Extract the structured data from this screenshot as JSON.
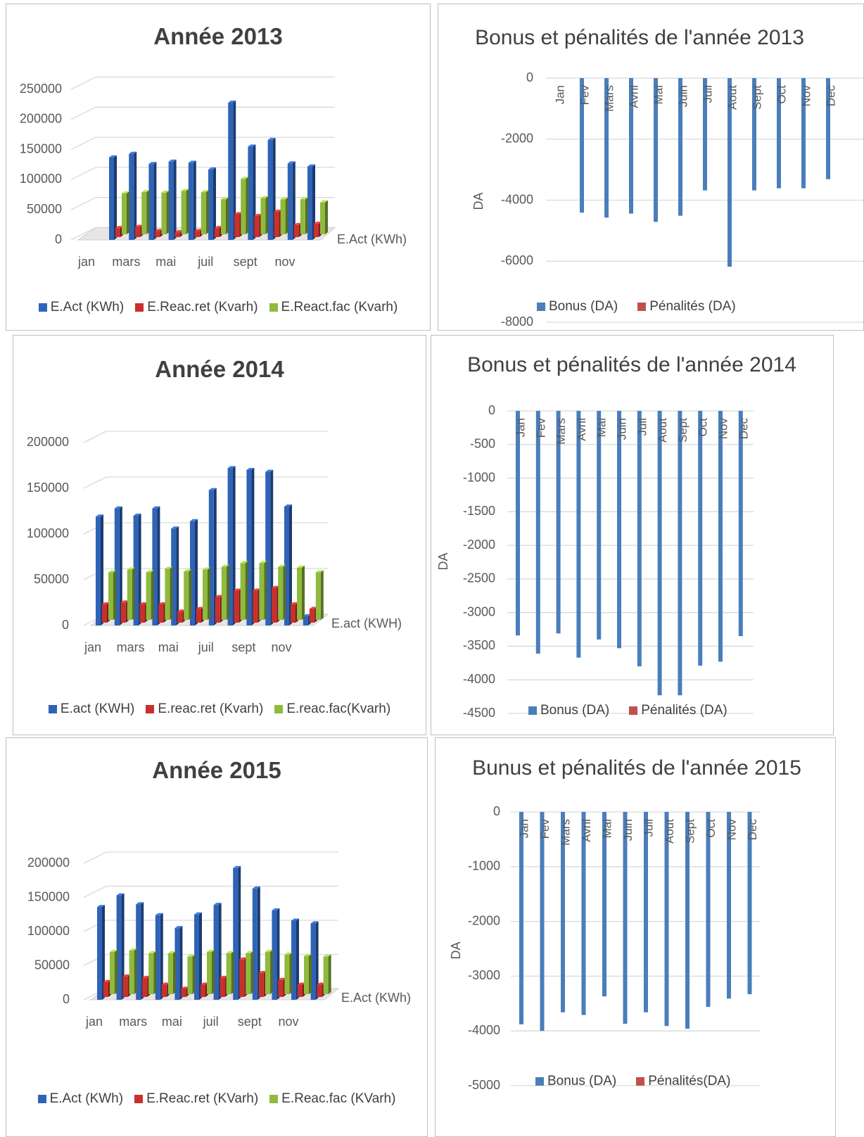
{
  "chart_data": [
    {
      "type": "bar3d",
      "title": "Année 2013",
      "categories": [
        "jan",
        null,
        "mars",
        null,
        "mai",
        null,
        "juil",
        null,
        "sept",
        null,
        "nov",
        null
      ],
      "series": [
        {
          "name": "E.Act (KWh)",
          "color": "#2f63b8",
          "values": [
            137000,
            143000,
            126000,
            130000,
            128000,
            117000,
            228000,
            155000,
            166000,
            127000,
            122000,
            null
          ]
        },
        {
          "name": "E.Reac.ret (Kvarh)",
          "color": "#c9302c",
          "values": [
            15000,
            17000,
            10000,
            8000,
            10000,
            15000,
            38000,
            35000,
            42000,
            20000,
            22000,
            null
          ]
        },
        {
          "name": "E.React.fac (Kvarh)",
          "color": "#8fba3e",
          "values": [
            68000,
            70000,
            69000,
            72000,
            70000,
            58000,
            92000,
            60000,
            58000,
            58000,
            53000,
            null
          ]
        }
      ],
      "depth_label": "E.Act (KWh)",
      "ylim": [
        0,
        250000
      ],
      "yticks": [
        0,
        50000,
        100000,
        150000,
        200000,
        250000
      ],
      "grid": true,
      "legend": "bottom"
    },
    {
      "type": "bar",
      "title": "Bonus et pénalités de l'année 2013",
      "y_label": "DA",
      "categories": [
        "Jan",
        "Fev",
        "Mars",
        "Avril",
        "Mai",
        "Juin",
        "Juil",
        "Aout",
        "Sept",
        "Oct",
        "Nov",
        "Dec"
      ],
      "series": [
        {
          "name": "Bonus (DA)",
          "color": "#4a7ebb",
          "values": [
            0,
            -4410,
            -4570,
            -4440,
            -4710,
            -4510,
            -3680,
            -6180,
            -3680,
            -3610,
            -3610,
            -3310
          ]
        },
        {
          "name": "Pénalités (DA)",
          "color": "#c0504d",
          "values": [
            0,
            0,
            0,
            0,
            0,
            0,
            0,
            0,
            0,
            0,
            0,
            0
          ]
        }
      ],
      "ylim": [
        -8000,
        0
      ],
      "yticks": [
        0,
        -2000,
        -4000,
        -6000,
        -8000
      ],
      "grid": true,
      "legend": "bottom"
    },
    {
      "type": "bar3d",
      "title": "Année 2014",
      "categories": [
        "jan",
        null,
        "mars",
        null,
        "mai",
        null,
        "juil",
        null,
        "sept",
        null,
        "nov",
        null
      ],
      "series": [
        {
          "name": "E.act (KWH)",
          "color": "#2f63b8",
          "values": [
            119000,
            128000,
            120000,
            128000,
            106000,
            114000,
            148000,
            172000,
            170000,
            168000,
            130000,
            10000
          ]
        },
        {
          "name": "E.reac.ret (Kvarh)",
          "color": "#c9302c",
          "values": [
            20000,
            22000,
            20000,
            20000,
            12000,
            15000,
            28000,
            35000,
            35000,
            38000,
            20000,
            15000
          ]
        },
        {
          "name": "E.reac.fac(Kvarh)",
          "color": "#8fba3e",
          "values": [
            52000,
            55000,
            52000,
            56000,
            53000,
            55000,
            58000,
            62000,
            62000,
            58000,
            57000,
            52000
          ]
        }
      ],
      "depth_label": "E.act (KWH)",
      "ylim": [
        0,
        200000
      ],
      "yticks": [
        0,
        50000,
        100000,
        150000,
        200000
      ],
      "grid": true,
      "legend": "bottom"
    },
    {
      "type": "bar",
      "title": "Bonus et pénalités de l'année 2014",
      "y_label": "DA",
      "categories": [
        "Jan",
        "Fev",
        "Mars",
        "Avril",
        "Mai",
        "Juin",
        "Juil",
        "Aout",
        "Sept",
        "Oct",
        "Nov",
        "Dec"
      ],
      "series": [
        {
          "name": "Bonus (DA)",
          "color": "#4a7ebb",
          "values": [
            -3340,
            -3610,
            -3310,
            -3670,
            -3400,
            -3530,
            -3800,
            -4230,
            -4230,
            -3790,
            -3730,
            -3350
          ]
        },
        {
          "name": "Pénalités (DA)",
          "color": "#c0504d",
          "values": [
            0,
            0,
            0,
            0,
            0,
            0,
            0,
            0,
            0,
            0,
            0,
            0
          ]
        }
      ],
      "ylim": [
        -4500,
        0
      ],
      "yticks": [
        0,
        -500,
        -1000,
        -1500,
        -2000,
        -2500,
        -3000,
        -3500,
        -4000,
        -4500
      ],
      "grid": true,
      "legend": "bottom"
    },
    {
      "type": "bar3d",
      "title": "Année 2015",
      "categories": [
        "jan",
        null,
        "mars",
        null,
        "mai",
        null,
        "juil",
        null,
        "sept",
        null,
        "nov",
        null
      ],
      "series": [
        {
          "name": "E.Act (KWh)",
          "color": "#2f63b8",
          "values": [
            136000,
            153000,
            140000,
            124000,
            105000,
            125000,
            139000,
            193000,
            163000,
            131000,
            116000,
            112000
          ]
        },
        {
          "name": "E.Reac.ret (KVarh)",
          "color": "#c9302c",
          "values": [
            22000,
            30000,
            28000,
            18000,
            12000,
            18000,
            28000,
            55000,
            35000,
            25000,
            18000,
            18000
          ]
        },
        {
          "name": "E.Reac.fac (KVarh)",
          "color": "#8fba3e",
          "values": [
            62000,
            64000,
            60000,
            60000,
            55000,
            62000,
            60000,
            60000,
            62000,
            58000,
            56000,
            55000
          ]
        }
      ],
      "depth_label": "E.Act (KWh)",
      "ylim": [
        0,
        200000
      ],
      "yticks": [
        0,
        50000,
        100000,
        150000,
        200000
      ],
      "grid": true,
      "legend": "bottom"
    },
    {
      "type": "bar",
      "title": "Bunus et pénalités de l'année 2015",
      "y_label": "DA",
      "categories": [
        "Jan",
        "Fev",
        "Mars",
        "Avril",
        "Mai",
        "Juin",
        "Juil",
        "Aout",
        "Sept",
        "Oct",
        "Nov",
        "Dec"
      ],
      "series": [
        {
          "name": "Bonus (DA)",
          "color": "#4a7ebb",
          "values": [
            -3880,
            -4000,
            -3660,
            -3710,
            -3370,
            -3870,
            -3660,
            -3910,
            -3960,
            -3560,
            -3410,
            -3330
          ]
        },
        {
          "name": "Pénalités(DA)",
          "color": "#c0504d",
          "values": [
            0,
            0,
            0,
            0,
            0,
            0,
            0,
            0,
            0,
            0,
            0,
            0
          ]
        }
      ],
      "ylim": [
        -5000,
        0
      ],
      "yticks": [
        0,
        -1000,
        -2000,
        -3000,
        -4000,
        -5000
      ],
      "grid": true,
      "legend": "bottom"
    }
  ]
}
